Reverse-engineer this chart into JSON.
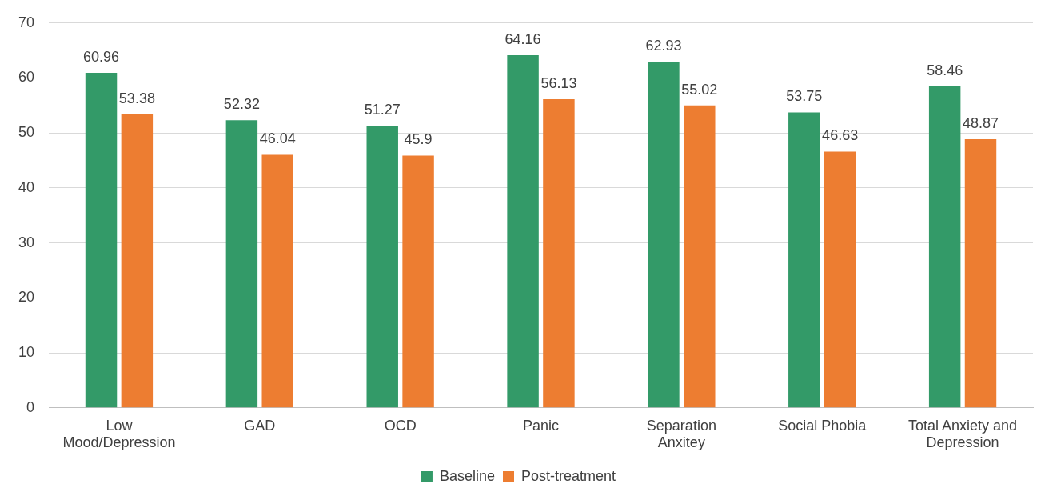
{
  "chart_data": {
    "type": "bar",
    "categories": [
      "Low Mood/Depression",
      "GAD",
      "OCD",
      "Panic",
      "Separation Anxitey",
      "Social Phobia",
      "Total Anxiety and Depression"
    ],
    "series": [
      {
        "name": "Baseline",
        "color": "#339a68",
        "values": [
          60.96,
          52.32,
          51.27,
          64.16,
          62.93,
          53.75,
          58.46
        ]
      },
      {
        "name": "Post-treatment",
        "color": "#ed7d31",
        "values": [
          53.38,
          46.04,
          45.9,
          56.13,
          55.02,
          46.63,
          48.87
        ]
      }
    ],
    "ylim": [
      0,
      70
    ],
    "yticks": [
      0,
      10,
      20,
      30,
      40,
      50,
      60,
      70
    ],
    "grid": "y",
    "legend": "bottom",
    "data_labels": true
  }
}
